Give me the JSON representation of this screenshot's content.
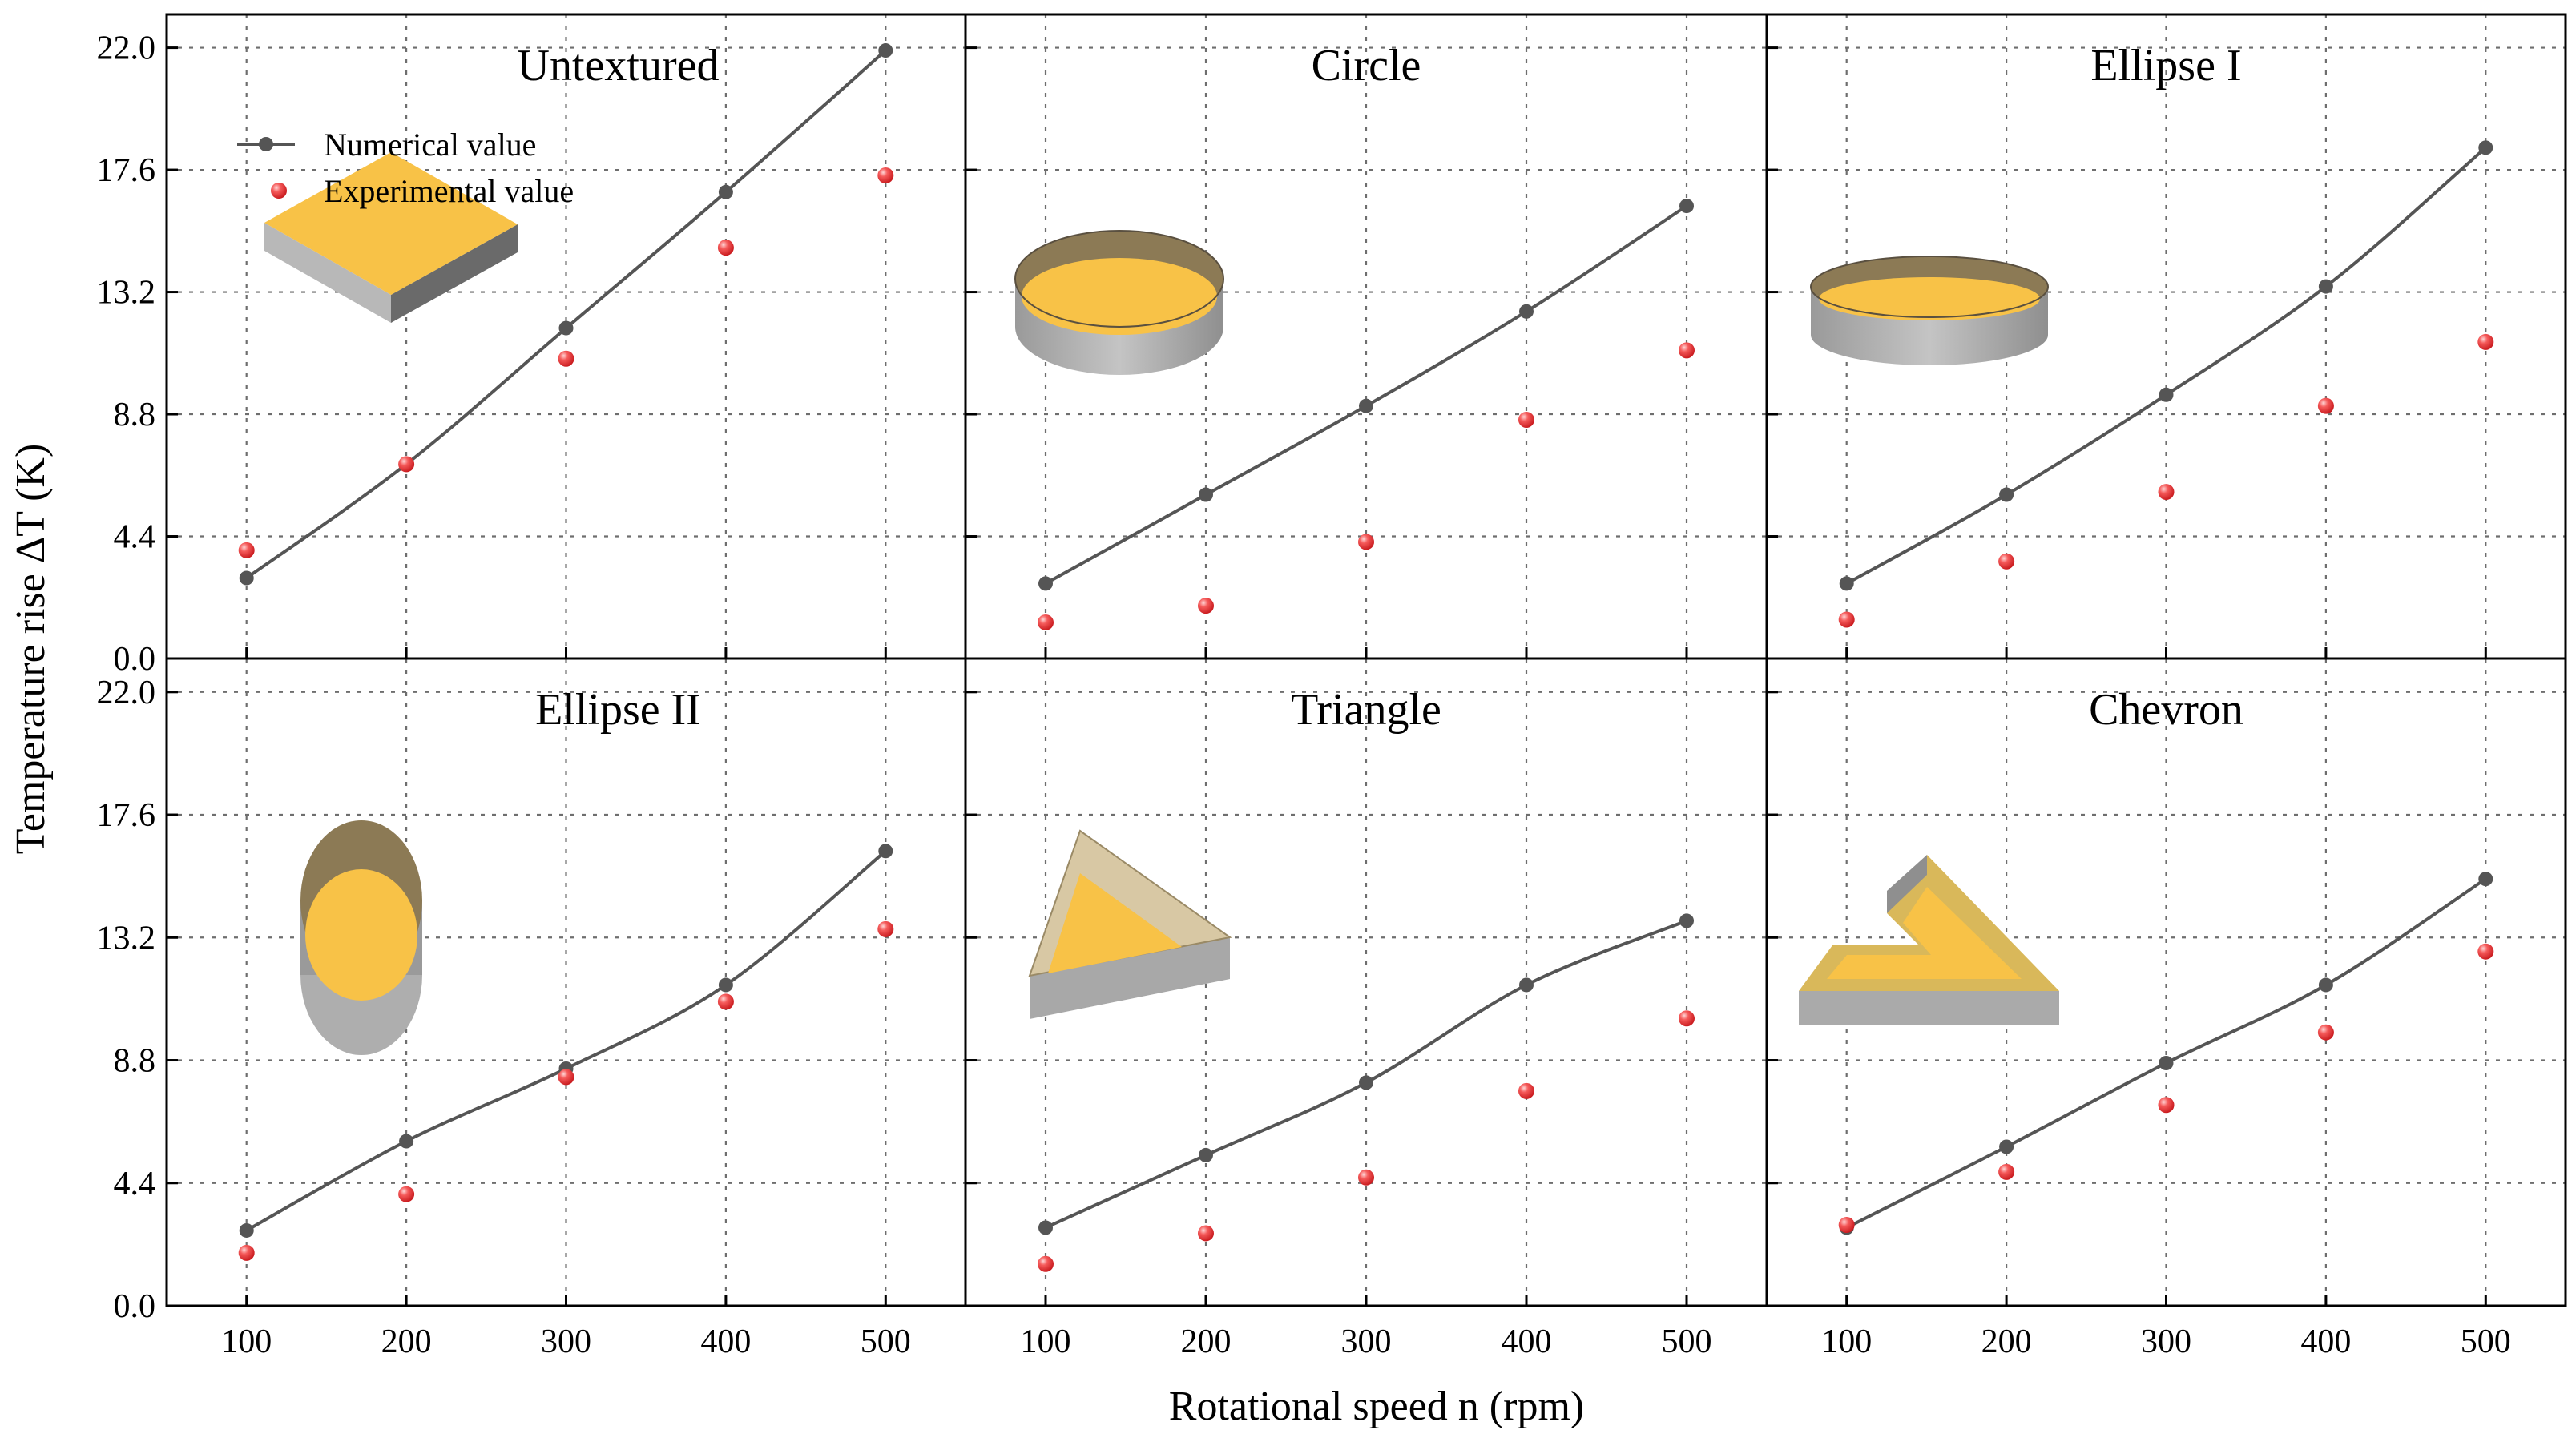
{
  "figure": {
    "ylabel": "Temperature rise ΔT (K)",
    "xlabel": "Rotational speed  n (rpm)",
    "legend": {
      "numerical": "Numerical value",
      "experimental": "Experimental value"
    },
    "colors": {
      "numerical": "#555555",
      "experimental": "#e8262c",
      "texture_face": "#f8c247",
      "texture_side": "#a9a9a9"
    }
  },
  "chart_data": [
    {
      "type": "line",
      "title": "Untextured",
      "icon": "square-texture-icon",
      "x": [
        100,
        200,
        300,
        400,
        500
      ],
      "xlim": [
        50,
        550
      ],
      "ylim": [
        0,
        23.2
      ],
      "yticks": [
        "0.0",
        "4.4",
        "8.8",
        "13.2",
        "17.6",
        "22.0"
      ],
      "xticks": [
        "100",
        "200",
        "300",
        "400",
        "500"
      ],
      "grid": true,
      "legend_position": "top-left",
      "series": [
        {
          "name": "Numerical value",
          "style": "line+marker",
          "values": [
            2.9,
            7.0,
            11.9,
            16.8,
            21.9
          ]
        },
        {
          "name": "Experimental value",
          "style": "marker",
          "values": [
            3.9,
            7.0,
            10.8,
            14.8,
            17.4
          ]
        }
      ]
    },
    {
      "type": "line",
      "title": "Circle",
      "icon": "circle-texture-icon",
      "x": [
        100,
        200,
        300,
        400,
        500
      ],
      "xlim": [
        50,
        550
      ],
      "ylim": [
        0,
        23.2
      ],
      "yticks": [
        "0.0",
        "4.4",
        "8.8",
        "13.2",
        "17.6",
        "22.0"
      ],
      "xticks": [
        "100",
        "200",
        "300",
        "400",
        "500"
      ],
      "grid": true,
      "series": [
        {
          "name": "Numerical value",
          "style": "line+marker",
          "values": [
            2.7,
            5.9,
            9.1,
            12.5,
            16.3
          ]
        },
        {
          "name": "Experimental value",
          "style": "marker",
          "values": [
            1.3,
            1.9,
            4.2,
            8.6,
            11.1
          ]
        }
      ]
    },
    {
      "type": "line",
      "title": "Ellipse I",
      "icon": "ellipse-wide-texture-icon",
      "x": [
        100,
        200,
        300,
        400,
        500
      ],
      "xlim": [
        50,
        550
      ],
      "ylim": [
        0,
        23.2
      ],
      "yticks": [
        "0.0",
        "4.4",
        "8.8",
        "13.2",
        "17.6",
        "22.0"
      ],
      "xticks": [
        "100",
        "200",
        "300",
        "400",
        "500"
      ],
      "grid": true,
      "series": [
        {
          "name": "Numerical value",
          "style": "line+marker",
          "values": [
            2.7,
            5.9,
            9.5,
            13.4,
            18.4
          ]
        },
        {
          "name": "Experimental value",
          "style": "marker",
          "values": [
            1.4,
            3.5,
            6.0,
            9.1,
            11.4
          ]
        }
      ]
    },
    {
      "type": "line",
      "title": "Ellipse II",
      "icon": "ellipse-tall-texture-icon",
      "x": [
        100,
        200,
        300,
        400,
        500
      ],
      "xlim": [
        50,
        550
      ],
      "ylim": [
        0,
        23.2
      ],
      "yticks": [
        "0.0",
        "4.4",
        "8.8",
        "13.2",
        "17.6",
        "22.0"
      ],
      "xticks": [
        "100",
        "200",
        "300",
        "400",
        "500"
      ],
      "grid": true,
      "series": [
        {
          "name": "Numerical value",
          "style": "line+marker",
          "values": [
            2.7,
            5.9,
            8.5,
            11.5,
            16.3
          ]
        },
        {
          "name": "Experimental value",
          "style": "marker",
          "values": [
            1.9,
            4.0,
            8.2,
            10.9,
            13.5
          ]
        }
      ]
    },
    {
      "type": "line",
      "title": "Triangle",
      "icon": "triangle-texture-icon",
      "x": [
        100,
        200,
        300,
        400,
        500
      ],
      "xlim": [
        50,
        550
      ],
      "ylim": [
        0,
        23.2
      ],
      "yticks": [
        "0.0",
        "4.4",
        "8.8",
        "13.2",
        "17.6",
        "22.0"
      ],
      "xticks": [
        "100",
        "200",
        "300",
        "400",
        "500"
      ],
      "grid": true,
      "series": [
        {
          "name": "Numerical value",
          "style": "line+marker",
          "values": [
            2.8,
            5.4,
            8.0,
            11.5,
            13.8
          ]
        },
        {
          "name": "Experimental value",
          "style": "marker",
          "values": [
            1.5,
            2.6,
            4.6,
            7.7,
            10.3
          ]
        }
      ]
    },
    {
      "type": "line",
      "title": "Chevron",
      "icon": "chevron-texture-icon",
      "x": [
        100,
        200,
        300,
        400,
        500
      ],
      "xlim": [
        50,
        550
      ],
      "ylim": [
        0,
        23.2
      ],
      "yticks": [
        "0.0",
        "4.4",
        "8.8",
        "13.2",
        "17.6",
        "22.0"
      ],
      "xticks": [
        "100",
        "200",
        "300",
        "400",
        "500"
      ],
      "grid": true,
      "series": [
        {
          "name": "Numerical value",
          "style": "line+marker",
          "values": [
            2.8,
            5.7,
            8.7,
            11.5,
            15.3
          ]
        },
        {
          "name": "Experimental value",
          "style": "marker",
          "values": [
            2.9,
            4.8,
            7.2,
            9.8,
            12.7
          ]
        }
      ]
    }
  ]
}
